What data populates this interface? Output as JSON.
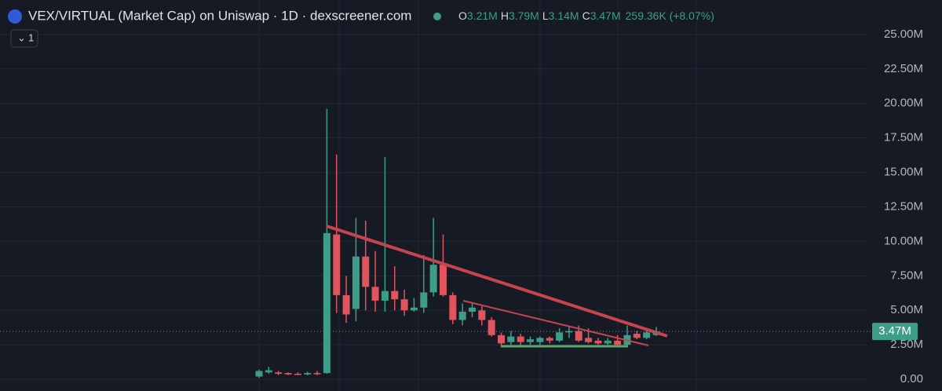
{
  "chart_data": {
    "type": "candlestick",
    "title": "VEX/VIRTUAL (Market Cap) on Uniswap · 1D · dexscreener.com",
    "interval_button": "1",
    "ohlc_legend": [
      {
        "key": "O",
        "value": "3.21M"
      },
      {
        "key": "H",
        "value": "3.79M"
      },
      {
        "key": "L",
        "value": "3.14M"
      },
      {
        "key": "C",
        "value": "3.47M"
      }
    ],
    "change": "259.36K (+8.07%)",
    "last_price": {
      "value": 3.47,
      "label": "3.47M"
    },
    "up_color": "#3e9d88",
    "down_color": "#e0545b",
    "open": [
      0.2,
      0.5,
      0.5,
      0.45,
      0.4,
      0.35,
      0.45,
      0.45,
      10.5,
      6.1,
      5.1,
      8.9,
      6.7,
      5.7,
      6.4,
      5.8,
      5.0,
      5.2,
      6.3,
      8.3,
      6.1,
      4.3,
      4.9,
      5.0,
      4.3,
      3.2,
      2.7,
      3.1,
      2.7,
      2.7,
      3.0,
      2.8,
      3.4,
      3.5,
      3.0,
      2.8,
      2.6,
      2.8,
      2.5,
      3.3,
      3.0,
      3.21
    ],
    "high": [
      0.7,
      0.9,
      0.6,
      0.5,
      0.5,
      0.55,
      0.6,
      19.6,
      16.3,
      7.5,
      11.7,
      11.5,
      9.3,
      16.1,
      8.2,
      6.5,
      5.9,
      9.0,
      11.7,
      10.5,
      6.3,
      5.5,
      5.5,
      5.3,
      4.5,
      3.4,
      3.5,
      3.3,
      3.1,
      3.1,
      3.1,
      3.7,
      3.9,
      3.9,
      3.7,
      3.0,
      3.0,
      3.2,
      3.9,
      3.5,
      3.6,
      3.79
    ],
    "low": [
      0.1,
      0.4,
      0.3,
      0.3,
      0.3,
      0.3,
      0.3,
      0.4,
      4.8,
      4.1,
      4.2,
      5.0,
      4.9,
      4.9,
      5.0,
      4.6,
      4.9,
      4.8,
      6.0,
      6.0,
      4.0,
      3.9,
      4.5,
      3.9,
      3.1,
      2.4,
      2.5,
      2.3,
      2.5,
      2.5,
      2.6,
      2.7,
      3.0,
      2.7,
      2.6,
      2.5,
      2.5,
      2.4,
      2.4,
      2.9,
      2.9,
      3.14
    ],
    "close": [
      0.6,
      0.65,
      0.4,
      0.35,
      0.35,
      0.45,
      0.4,
      10.6,
      6.1,
      4.7,
      8.9,
      6.7,
      5.7,
      6.4,
      5.8,
      5.0,
      5.2,
      6.3,
      8.3,
      6.1,
      4.3,
      4.9,
      5.2,
      4.3,
      3.2,
      2.6,
      3.1,
      2.7,
      2.9,
      3.0,
      2.8,
      3.4,
      3.5,
      2.8,
      2.7,
      2.6,
      2.8,
      2.5,
      3.2,
      3.0,
      3.4,
      3.47
    ],
    "ylim": [
      -0.85,
      27.5
    ],
    "yticks": [
      {
        "value": 0,
        "label": "0.00"
      },
      {
        "value": 2.5,
        "label": "2.50M"
      },
      {
        "value": 5,
        "label": "5.00M"
      },
      {
        "value": 7.5,
        "label": "7.50M"
      },
      {
        "value": 10,
        "label": "10.00M"
      },
      {
        "value": 12.5,
        "label": "12.50M"
      },
      {
        "value": 15,
        "label": "15.00M"
      },
      {
        "value": 17.5,
        "label": "17.50M"
      },
      {
        "value": 20,
        "label": "20.00M"
      },
      {
        "value": 22.5,
        "label": "22.50M"
      },
      {
        "value": 25,
        "label": "25.00M"
      }
    ],
    "grid": true
  }
}
